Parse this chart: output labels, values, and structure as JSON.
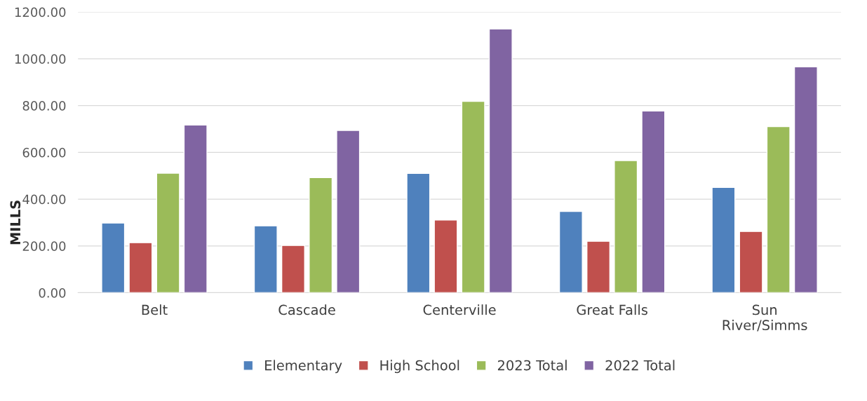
{
  "chart_data": {
    "type": "bar",
    "ylabel": "MILLS",
    "categories": [
      "Belt",
      "Cascade",
      "Centerville",
      "Great Falls",
      "Sun\nRiver/Simms"
    ],
    "series": [
      {
        "name": "Elementary",
        "color": "#4f81bd",
        "values": [
          298,
          286,
          510,
          348,
          450
        ]
      },
      {
        "name": "High School",
        "color": "#c0504d",
        "values": [
          214,
          202,
          311,
          220,
          262
        ]
      },
      {
        "name": "2023 Total",
        "color": "#9bbb59",
        "values": [
          511,
          492,
          818,
          565,
          710
        ]
      },
      {
        "name": "2022 Total",
        "color": "#8064a2",
        "values": [
          717,
          694,
          1128,
          777,
          966
        ]
      }
    ],
    "ylim": [
      0,
      1200
    ],
    "yticks": [
      {
        "value": 0,
        "label": "0.00"
      },
      {
        "value": 200,
        "label": "200.00"
      },
      {
        "value": 400,
        "label": "400.00"
      },
      {
        "value": 600,
        "label": "600.00"
      },
      {
        "value": 800,
        "label": "800.00"
      },
      {
        "value": 1000,
        "label": "1000.00"
      },
      {
        "value": 1200,
        "label": "1200.00"
      }
    ],
    "grid": "y",
    "legend": "bottom"
  }
}
